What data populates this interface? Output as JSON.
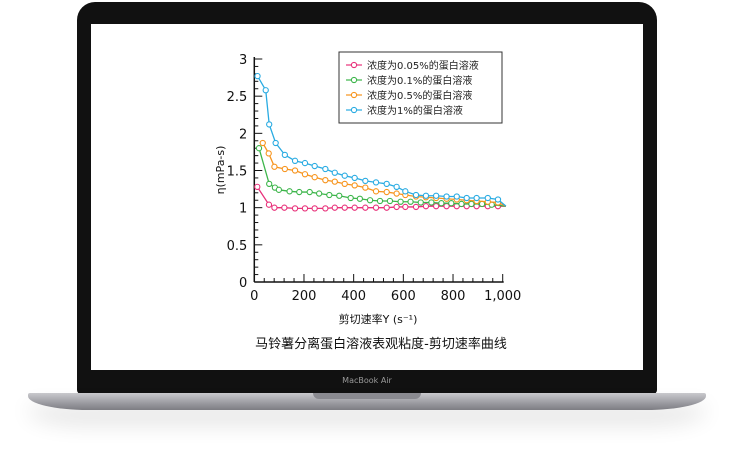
{
  "device": {
    "label": "MacBook Air"
  },
  "chart_data": {
    "type": "line",
    "title": "马铃薯分离蛋白溶液表观粘度-剪切速率曲线",
    "xlabel": "剪切速率Y (s⁻¹)",
    "ylabel": "η(mPa-s)",
    "xlim": [
      0,
      1000
    ],
    "ylim": [
      0,
      3
    ],
    "xticks": [
      "0",
      "200",
      "400",
      "600",
      "800",
      "1,000"
    ],
    "yticks": [
      "0",
      "0.5",
      "1",
      "1.5",
      "2",
      "2.5",
      "3"
    ],
    "grid": false,
    "legend_position": "top-right",
    "series": [
      {
        "name": "浓度为0.05%的蛋白溶液",
        "color": "#e8317a",
        "x": [
          12,
          59,
          81,
          121,
          164,
          204,
          243,
          286,
          324,
          364,
          404,
          447,
          490,
          533,
          573,
          608,
          651,
          691,
          732,
          774,
          815,
          855,
          895,
          940,
          981,
          1013
        ],
        "y": [
          1.28,
          1.04,
          1.0,
          1.0,
          0.99,
          0.99,
          0.99,
          0.99,
          1.0,
          1.0,
          1.0,
          1.0,
          1.0,
          1.0,
          1.01,
          1.01,
          1.01,
          1.02,
          1.02,
          1.02,
          1.02,
          1.02,
          1.02,
          1.02,
          1.02,
          1.02
        ]
      },
      {
        "name": "浓度为0.1%的蛋白溶液",
        "color": "#3cb54a",
        "x": [
          19,
          60,
          83,
          99,
          142,
          181,
          223,
          261,
          302,
          342,
          388,
          425,
          466,
          506,
          546,
          589,
          629,
          670,
          713,
          753,
          793,
          834,
          874,
          917,
          956,
          1013
        ],
        "y": [
          1.8,
          1.32,
          1.27,
          1.24,
          1.22,
          1.21,
          1.21,
          1.19,
          1.17,
          1.16,
          1.13,
          1.12,
          1.1,
          1.09,
          1.09,
          1.08,
          1.08,
          1.07,
          1.07,
          1.06,
          1.06,
          1.05,
          1.05,
          1.05,
          1.04,
          1.02
        ]
      },
      {
        "name": "浓度为0.5%的蛋白溶液",
        "color": "#f7941d",
        "x": [
          34,
          58,
          81,
          123,
          164,
          204,
          243,
          286,
          324,
          364,
          404,
          447,
          490,
          533,
          573,
          608,
          651,
          691,
          732,
          774,
          815,
          855,
          895,
          940,
          981,
          1013
        ],
        "y": [
          1.87,
          1.73,
          1.55,
          1.52,
          1.5,
          1.45,
          1.41,
          1.37,
          1.35,
          1.32,
          1.3,
          1.27,
          1.22,
          1.21,
          1.19,
          1.17,
          1.15,
          1.14,
          1.13,
          1.12,
          1.11,
          1.1,
          1.09,
          1.08,
          1.07,
          1.02
        ]
      },
      {
        "name": "浓度为1%的蛋白溶液",
        "color": "#29abe2",
        "x": [
          13,
          46,
          60,
          86,
          123,
          164,
          204,
          243,
          286,
          324,
          364,
          404,
          447,
          490,
          533,
          573,
          608,
          651,
          691,
          732,
          774,
          815,
          855,
          895,
          940,
          981,
          1013
        ],
        "y": [
          2.77,
          2.58,
          2.12,
          1.87,
          1.71,
          1.63,
          1.6,
          1.56,
          1.52,
          1.47,
          1.43,
          1.4,
          1.36,
          1.34,
          1.32,
          1.28,
          1.22,
          1.17,
          1.16,
          1.16,
          1.15,
          1.15,
          1.13,
          1.13,
          1.13,
          1.11,
          1.02
        ]
      }
    ]
  }
}
